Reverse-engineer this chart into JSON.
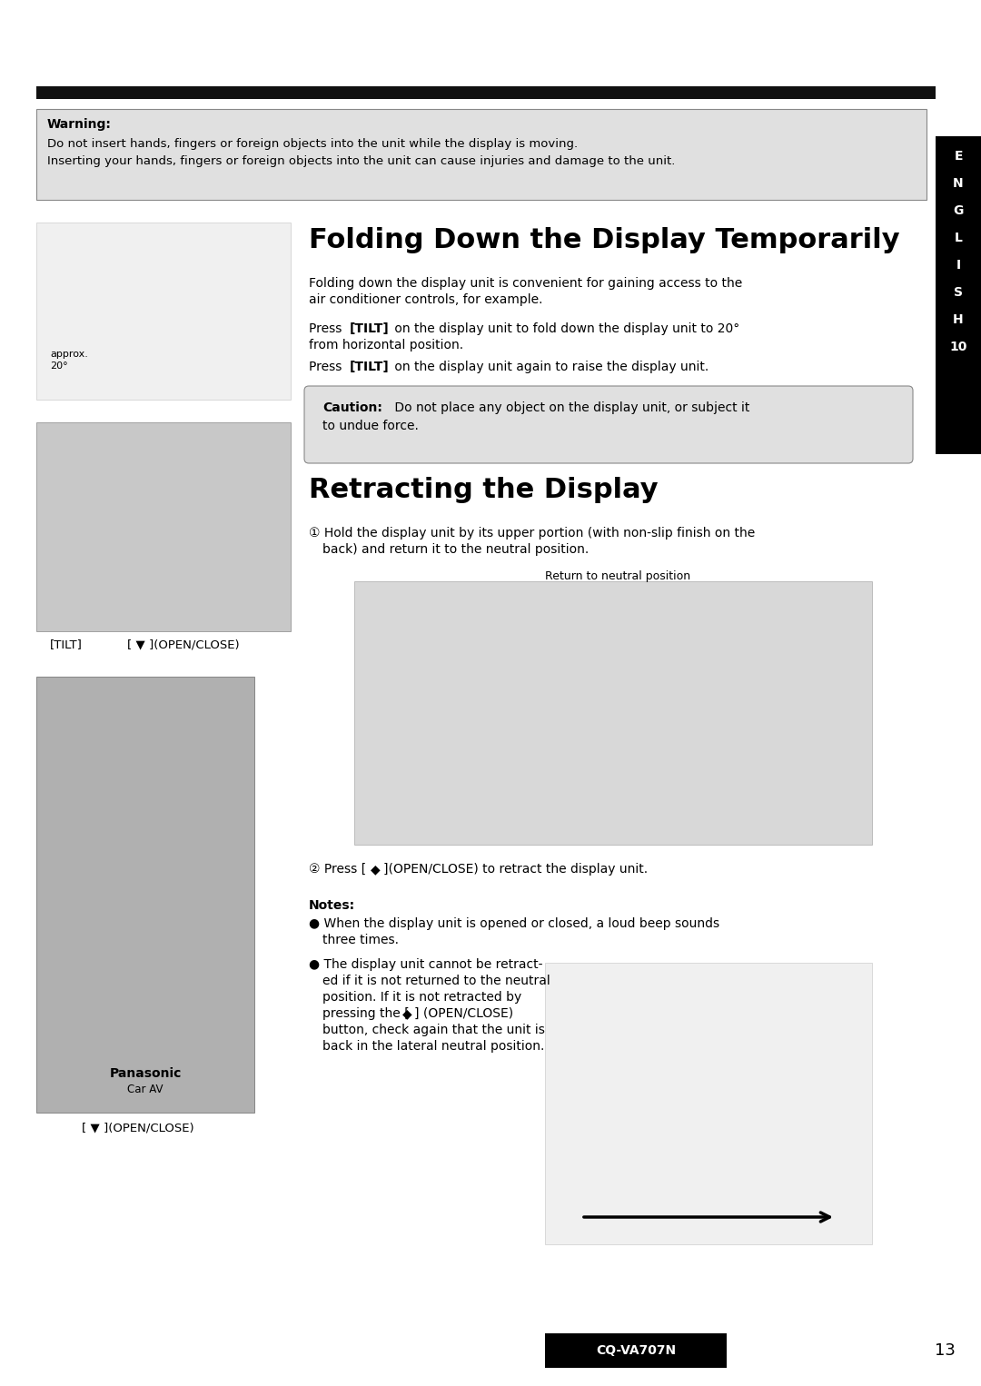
{
  "bg_color": "#ffffff",
  "page_width": 10.8,
  "page_height": 15.26,
  "top_bar_color": "#111111",
  "warning_box_color": "#e0e0e0",
  "sidebar_color": "#000000",
  "warning_title": "Warning:",
  "warning_line1": "Do not insert hands, fingers or foreign objects into the unit while the display is moving.",
  "warning_line2": "Inserting your hands, fingers or foreign objects into the unit can cause injuries and damage to the unit.",
  "main_title": "Folding Down the Display Temporarily",
  "section2_title": "Retracting the Display",
  "body_text_1a": "Folding down the display unit is convenient for gaining access to the",
  "body_text_1b": "air conditioner controls, for example.",
  "body_text_2b": "from horizontal position.",
  "body_text_2c": "Press [TILT] on the display unit again to raise the display unit.",
  "return_label": "Return to neutral position",
  "notes_title": "Notes:",
  "footer_model": "CQ-VA707N",
  "footer_page": "13",
  "sidebar_letters": [
    "E",
    "N",
    "G",
    "L",
    "I",
    "S",
    "H"
  ],
  "sidebar_number": "10"
}
